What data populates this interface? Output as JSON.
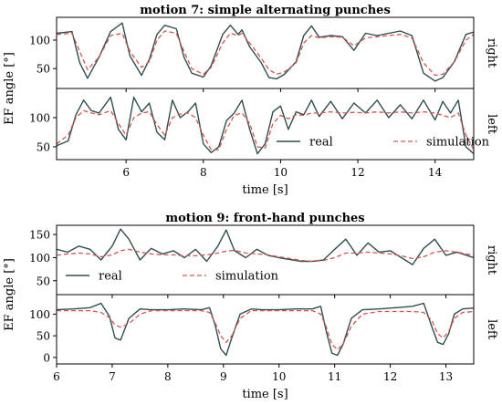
{
  "figure_colors": {
    "real": "#2f4f4f",
    "simulation": "#d9534f"
  },
  "chart_data": [
    {
      "type": "line",
      "title": "motion 7: simple alternating punches",
      "xlabel": "time [s]",
      "ylabel": "EF angle [°]",
      "xlim": [
        4.2,
        15.0
      ],
      "xticks": [
        6,
        8,
        10,
        12,
        14
      ],
      "legend": {
        "entries": [
          "real",
          "simulation"
        ],
        "location": "lower right of bottom panel"
      },
      "panels": [
        {
          "side_label": "right",
          "ylim": [
            15,
            140
          ],
          "yticks": [
            50,
            100
          ],
          "series": [
            {
              "name": "real",
              "x": [
                4.2,
                4.6,
                4.8,
                5.0,
                5.3,
                5.6,
                5.9,
                6.1,
                6.4,
                6.6,
                6.8,
                7.0,
                7.3,
                7.5,
                7.7,
                8.0,
                8.2,
                8.5,
                8.7,
                8.9,
                9.0,
                9.2,
                9.5,
                9.7,
                9.9,
                10.1,
                10.4,
                10.6,
                10.8,
                11.0,
                11.3,
                11.6,
                11.9,
                12.2,
                12.5,
                12.8,
                13.1,
                13.4,
                13.7,
                14.0,
                14.2,
                14.5,
                14.8,
                15.0
              ],
              "y": [
                112,
                115,
                60,
                33,
                70,
                115,
                130,
                72,
                38,
                66,
                110,
                126,
                120,
                70,
                42,
                35,
                55,
                110,
                126,
                110,
                118,
                88,
                60,
                34,
                32,
                40,
                62,
                108,
                125,
                105,
                108,
                106,
                82,
                112,
                108,
                112,
                116,
                108,
                42,
                28,
                34,
                62,
                110,
                114
              ]
            },
            {
              "name": "simulation",
              "x": [
                4.2,
                4.6,
                4.8,
                5.0,
                5.3,
                5.6,
                5.9,
                6.1,
                6.4,
                6.6,
                6.8,
                7.0,
                7.3,
                7.5,
                7.7,
                8.0,
                8.2,
                8.5,
                8.7,
                8.9,
                9.0,
                9.2,
                9.5,
                9.7,
                9.9,
                10.1,
                10.4,
                10.6,
                10.8,
                11.0,
                11.3,
                11.6,
                11.9,
                12.2,
                12.5,
                12.8,
                13.1,
                13.4,
                13.7,
                14.0,
                14.2,
                14.5,
                14.8,
                15.0
              ],
              "y": [
                110,
                112,
                80,
                48,
                70,
                108,
                112,
                80,
                52,
                62,
                100,
                116,
                112,
                80,
                50,
                40,
                52,
                95,
                112,
                108,
                112,
                95,
                68,
                48,
                40,
                44,
                60,
                95,
                108,
                104,
                106,
                105,
                90,
                104,
                106,
                108,
                110,
                104,
                60,
                38,
                40,
                62,
                100,
                110
              ]
            }
          ]
        },
        {
          "side_label": "left",
          "ylim": [
            28,
            150
          ],
          "yticks": [
            50,
            100
          ],
          "series": [
            {
              "name": "real",
              "x": [
                4.2,
                4.5,
                4.7,
                4.9,
                5.1,
                5.3,
                5.6,
                5.8,
                6.0,
                6.2,
                6.4,
                6.6,
                6.8,
                7.0,
                7.2,
                7.4,
                7.6,
                7.8,
                8.0,
                8.2,
                8.4,
                8.6,
                8.8,
                9.0,
                9.2,
                9.4,
                9.6,
                9.8,
                10.0,
                10.2,
                10.4,
                10.6,
                10.8,
                11.0,
                11.3,
                11.6,
                11.9,
                12.2,
                12.5,
                12.8,
                13.1,
                13.4,
                13.7,
                14.0,
                14.2,
                14.4,
                14.6,
                14.8,
                15.0
              ],
              "y": [
                52,
                60,
                105,
                130,
                112,
                108,
                135,
                80,
                62,
                135,
                110,
                125,
                75,
                62,
                130,
                100,
                110,
                125,
                55,
                40,
                50,
                95,
                108,
                130,
                80,
                38,
                55,
                110,
                120,
                80,
                110,
                105,
                130,
                102,
                128,
                98,
                125,
                108,
                130,
                100,
                122,
                98,
                130,
                96,
                128,
                108,
                130,
                50,
                38
              ]
            },
            {
              "name": "simulation",
              "x": [
                4.2,
                4.5,
                4.7,
                4.9,
                5.1,
                5.3,
                5.6,
                5.8,
                6.0,
                6.2,
                6.4,
                6.6,
                6.8,
                7.0,
                7.2,
                7.4,
                7.6,
                7.8,
                8.0,
                8.2,
                8.4,
                8.6,
                8.8,
                9.0,
                9.2,
                9.4,
                9.6,
                9.8,
                10.0,
                10.2,
                10.4,
                10.6,
                10.8,
                11.0,
                11.3,
                11.6,
                11.9,
                12.2,
                12.5,
                12.8,
                13.1,
                13.4,
                13.7,
                14.0,
                14.2,
                14.4,
                14.6,
                14.8,
                15.0
              ],
              "y": [
                55,
                70,
                100,
                112,
                108,
                105,
                112,
                90,
                70,
                100,
                108,
                110,
                88,
                70,
                100,
                106,
                108,
                100,
                70,
                45,
                45,
                80,
                104,
                108,
                90,
                50,
                48,
                90,
                104,
                98,
                105,
                104,
                108,
                108,
                110,
                108,
                109,
                108,
                110,
                108,
                110,
                108,
                110,
                108,
                104,
                100,
                108,
                70,
                45
              ]
            }
          ]
        }
      ]
    },
    {
      "type": "line",
      "title": "motion 9: front-hand punches",
      "xlabel": "time [s]",
      "ylabel": "EF angle [°]",
      "xlim": [
        6.0,
        13.5
      ],
      "xticks": [
        6,
        7,
        8,
        9,
        10,
        11,
        12,
        13
      ],
      "legend": {
        "entries": [
          "real",
          "simulation"
        ],
        "location": "lower left of top panel"
      },
      "panels": [
        {
          "side_label": "right",
          "ylim": [
            20,
            170
          ],
          "yticks": [
            50,
            100,
            150
          ],
          "series": [
            {
              "name": "real",
              "x": [
                6.0,
                6.2,
                6.4,
                6.6,
                6.8,
                7.0,
                7.15,
                7.3,
                7.5,
                7.7,
                7.9,
                8.1,
                8.3,
                8.5,
                8.7,
                8.9,
                9.05,
                9.2,
                9.4,
                9.6,
                9.8,
                10.0,
                10.2,
                10.4,
                10.6,
                10.8,
                11.0,
                11.2,
                11.4,
                11.6,
                11.8,
                12.0,
                12.2,
                12.4,
                12.6,
                12.8,
                13.0,
                13.2,
                13.5
              ],
              "y": [
                118,
                112,
                125,
                118,
                95,
                125,
                162,
                140,
                95,
                120,
                108,
                115,
                100,
                118,
                92,
                125,
                160,
                115,
                100,
                118,
                105,
                100,
                96,
                92,
                92,
                95,
                118,
                140,
                105,
                132,
                112,
                115,
                100,
                85,
                120,
                140,
                105,
                112,
                100
              ]
            },
            {
              "name": "simulation",
              "x": [
                6.0,
                6.2,
                6.4,
                6.6,
                6.8,
                7.0,
                7.15,
                7.3,
                7.5,
                7.7,
                7.9,
                8.1,
                8.3,
                8.5,
                8.7,
                8.9,
                9.05,
                9.2,
                9.4,
                9.6,
                9.8,
                10.0,
                10.2,
                10.4,
                10.6,
                10.8,
                11.0,
                11.2,
                11.4,
                11.6,
                11.8,
                12.0,
                12.2,
                12.4,
                12.6,
                12.8,
                13.0,
                13.2,
                13.5
              ],
              "y": [
                105,
                108,
                110,
                108,
                102,
                106,
                115,
                118,
                112,
                108,
                106,
                106,
                104,
                104,
                106,
                110,
                114,
                116,
                110,
                108,
                106,
                102,
                98,
                94,
                92,
                94,
                100,
                110,
                110,
                112,
                110,
                108,
                104,
                98,
                102,
                112,
                115,
                112,
                105
              ]
            }
          ]
        },
        {
          "side_label": "left",
          "ylim": [
            -15,
            145
          ],
          "yticks": [
            0,
            50,
            100
          ],
          "series": [
            {
              "name": "real",
              "x": [
                6.0,
                6.3,
                6.6,
                6.8,
                6.95,
                7.05,
                7.15,
                7.3,
                7.5,
                7.7,
                8.0,
                8.3,
                8.6,
                8.75,
                8.85,
                8.95,
                9.05,
                9.15,
                9.3,
                9.5,
                9.7,
                10.0,
                10.3,
                10.6,
                10.75,
                10.85,
                10.95,
                11.05,
                11.15,
                11.3,
                11.5,
                11.8,
                12.1,
                12.4,
                12.6,
                12.75,
                12.85,
                12.95,
                13.05,
                13.15,
                13.3,
                13.5
              ],
              "y": [
                110,
                112,
                115,
                125,
                95,
                45,
                40,
                90,
                112,
                110,
                110,
                112,
                110,
                115,
                75,
                20,
                5,
                45,
                100,
                112,
                110,
                110,
                112,
                112,
                118,
                60,
                10,
                5,
                30,
                90,
                110,
                112,
                115,
                118,
                125,
                70,
                35,
                30,
                55,
                100,
                112,
                114
              ]
            },
            {
              "name": "simulation",
              "x": [
                6.0,
                6.3,
                6.6,
                6.8,
                6.95,
                7.05,
                7.15,
                7.3,
                7.5,
                7.7,
                8.0,
                8.3,
                8.6,
                8.75,
                8.85,
                8.95,
                9.05,
                9.15,
                9.3,
                9.5,
                9.7,
                10.0,
                10.3,
                10.6,
                10.75,
                10.85,
                10.95,
                11.05,
                11.15,
                11.3,
                11.5,
                11.8,
                12.1,
                12.4,
                12.6,
                12.75,
                12.85,
                12.95,
                13.05,
                13.15,
                13.3,
                13.5
              ],
              "y": [
                108,
                108,
                108,
                104,
                92,
                75,
                70,
                78,
                100,
                108,
                108,
                108,
                108,
                104,
                80,
                50,
                35,
                50,
                90,
                108,
                108,
                108,
                108,
                108,
                100,
                70,
                30,
                18,
                30,
                72,
                100,
                106,
                106,
                106,
                104,
                85,
                55,
                45,
                60,
                90,
                104,
                106
              ]
            }
          ]
        }
      ]
    }
  ]
}
